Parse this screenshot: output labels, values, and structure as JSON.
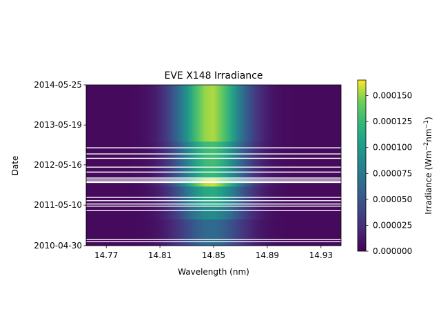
{
  "chart_data": {
    "type": "heatmap",
    "title": "EVE X148 Irradiance",
    "xlabel": "Wavelength (nm)",
    "ylabel": "Date",
    "xlim": [
      14.755,
      14.945
    ],
    "x_ticks": [
      14.77,
      14.81,
      14.85,
      14.89,
      14.93
    ],
    "x_tick_labels": [
      "14.77",
      "14.81",
      "14.85",
      "14.89",
      "14.93"
    ],
    "ylim": [
      "2010-04-30",
      "2014-05-25"
    ],
    "y_ticks": [
      "2010-04-30",
      "2011-05-10",
      "2012-05-16",
      "2013-05-19",
      "2014-05-25"
    ],
    "y_tick_labels": [
      "2010-04-30",
      "2011-05-10",
      "2012-05-16",
      "2013-05-19",
      "2014-05-25"
    ],
    "line_center_nm": 14.848,
    "line_width_nm": 0.018,
    "colormap": "viridis",
    "colorbar": {
      "label": "Irradiance (Wm",
      "label_exp1": "−2",
      "label_mid": "nm",
      "label_exp2": "−1",
      "label_end": ")",
      "range": [
        0,
        0.000165
      ],
      "ticks": [
        0,
        2.5e-05,
        5e-05,
        7.5e-05,
        0.0001,
        0.000125,
        0.00015
      ],
      "tick_labels": [
        "0.000000",
        "0.000025",
        "0.000050",
        "0.000075",
        "0.000100",
        "0.000125",
        "0.000150"
      ]
    },
    "peak_irradiance_by_period": [
      {
        "from": "2010-04-30",
        "to": "2011-01-01",
        "peak": 6e-05
      },
      {
        "from": "2011-01-01",
        "to": "2011-05-10",
        "peak": 8.5e-05
      },
      {
        "from": "2011-05-10",
        "to": "2011-11-01",
        "peak": 0.00011
      },
      {
        "from": "2011-11-01",
        "to": "2012-01-15",
        "peak": 0.000155
      },
      {
        "from": "2012-01-15",
        "to": "2012-05-16",
        "peak": 0.00012
      },
      {
        "from": "2012-05-16",
        "to": "2012-12-20",
        "peak": 0.000125
      },
      {
        "from": "2012-12-20",
        "to": "2014-05-25",
        "peak": 0.00015
      }
    ],
    "data_gaps": [
      "2010-06-05",
      "2010-06-25",
      "2011-03-20",
      "2011-04-30",
      "2011-05-20",
      "2011-06-20",
      "2011-07-20",
      "2011-12-05",
      "2011-12-15",
      "2011-12-28",
      "2012-01-15",
      "2012-03-10",
      "2012-04-25",
      "2012-07-15",
      "2012-08-25",
      "2012-10-20"
    ],
    "grid": false,
    "legend": "none"
  }
}
